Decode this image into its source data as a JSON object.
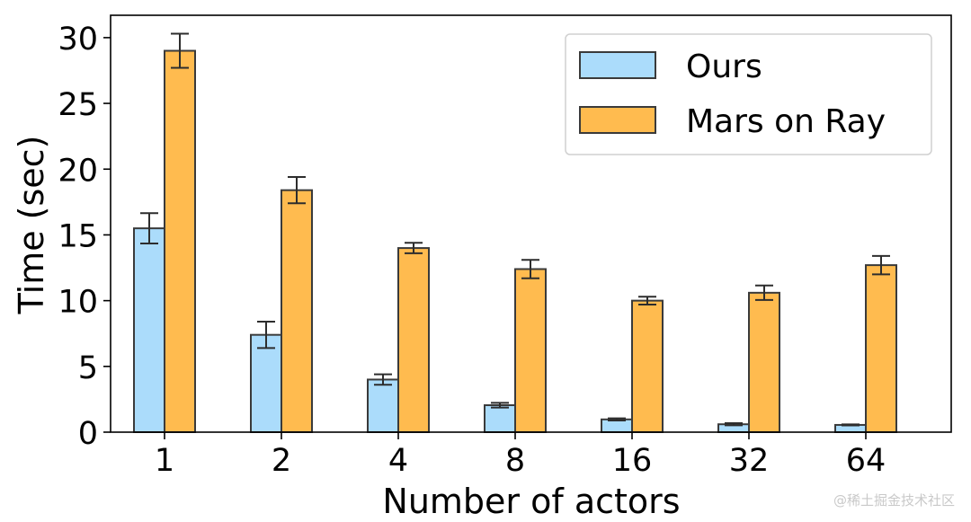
{
  "chart_data": {
    "type": "bar",
    "title": "",
    "xlabel": "Number of actors",
    "ylabel": "Time (sec)",
    "categories": [
      "1",
      "2",
      "4",
      "8",
      "16",
      "32",
      "64"
    ],
    "ylim": [
      0,
      31.7
    ],
    "yticks": [
      0,
      5,
      10,
      15,
      20,
      25,
      30
    ],
    "grid": false,
    "legend_position": "top-right",
    "series": [
      {
        "name": "Ours",
        "color": "#abdcfb",
        "values": [
          15.5,
          7.4,
          4.0,
          2.05,
          0.97,
          0.6,
          0.55
        ],
        "errors": [
          1.15,
          1.0,
          0.4,
          0.18,
          0.08,
          0.08,
          0.04
        ]
      },
      {
        "name": "Mars on Ray",
        "color": "#ffbb4f",
        "values": [
          29.0,
          18.4,
          14.0,
          12.4,
          10.0,
          10.6,
          12.7
        ],
        "errors": [
          1.3,
          1.0,
          0.4,
          0.7,
          0.3,
          0.55,
          0.7
        ]
      }
    ]
  },
  "watermark": "@稀土掘金技术社区"
}
